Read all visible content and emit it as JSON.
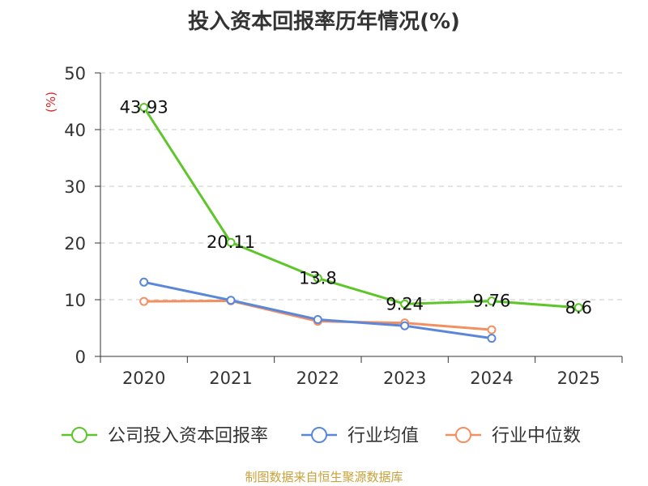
{
  "chart_data": {
    "type": "line",
    "title": "投入资本回报率历年情况(%)",
    "ylabel": "(%)",
    "xlabel": "",
    "ylim": [
      0,
      50
    ],
    "yticks": [
      0,
      10,
      20,
      30,
      40,
      50
    ],
    "categories": [
      "2020",
      "2021",
      "2022",
      "2023",
      "2024",
      "2025"
    ],
    "series": [
      {
        "name": "公司投入资本回报率",
        "color": "#5ec52a",
        "values": [
          43.93,
          20.11,
          13.8,
          9.24,
          9.76,
          8.6
        ],
        "labels": [
          "43.93",
          "20.11",
          "13.8",
          "9.24",
          "9.76",
          "8.6"
        ]
      },
      {
        "name": "行业均值",
        "color": "#5b87d9",
        "values": [
          13.1,
          9.9,
          6.5,
          5.4,
          3.2,
          null
        ]
      },
      {
        "name": "行业中位数",
        "color": "#f39062",
        "values": [
          9.7,
          9.8,
          6.2,
          5.9,
          4.7,
          null
        ]
      }
    ],
    "legend_position": "bottom",
    "grid": true
  },
  "source": "制图数据来自恒生聚源数据库"
}
